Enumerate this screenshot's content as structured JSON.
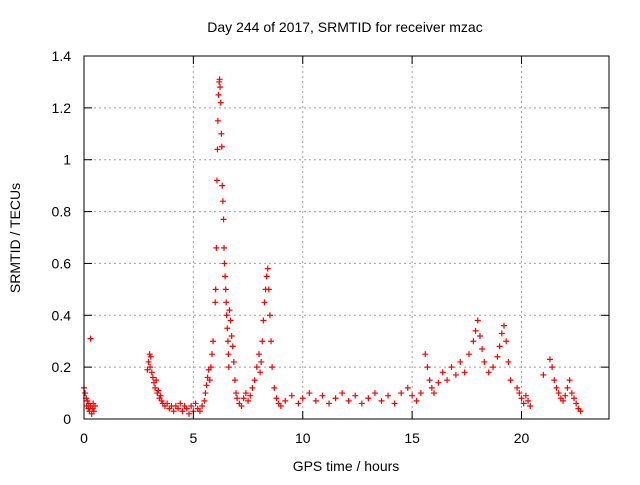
{
  "chart_data": {
    "type": "scatter",
    "title": "Day 244 of 2017, SRMTID for receiver mzac",
    "xlabel": "GPS time / hours",
    "ylabel": "SRMTID / TECUs",
    "xlim": [
      0,
      24
    ],
    "ylim": [
      0,
      1.4
    ],
    "x_ticks": [
      0,
      5,
      10,
      15,
      20
    ],
    "x_tick_labels": [
      "0",
      "5",
      "10",
      "15",
      "20"
    ],
    "y_ticks": [
      0,
      0.2,
      0.4,
      0.6,
      0.8,
      1,
      1.2,
      1.4
    ],
    "y_tick_labels": [
      "0",
      "0.2",
      "0.4",
      "0.6",
      "0.8",
      "1",
      "1.2",
      "1.4"
    ],
    "grid": true,
    "series": [
      {
        "name": "SRMTID",
        "marker": "plus",
        "color": "#ff0000",
        "points": [
          [
            0.0,
            0.12
          ],
          [
            0.05,
            0.1
          ],
          [
            0.1,
            0.08
          ],
          [
            0.12,
            0.05
          ],
          [
            0.15,
            0.07
          ],
          [
            0.2,
            0.04
          ],
          [
            0.22,
            0.06
          ],
          [
            0.25,
            0.03
          ],
          [
            0.3,
            0.05
          ],
          [
            0.35,
            0.02
          ],
          [
            0.4,
            0.04
          ],
          [
            0.42,
            0.06
          ],
          [
            0.45,
            0.03
          ],
          [
            0.5,
            0.05
          ],
          [
            0.3,
            0.31
          ],
          [
            2.9,
            0.19
          ],
          [
            2.95,
            0.22
          ],
          [
            3.0,
            0.25
          ],
          [
            3.02,
            0.2
          ],
          [
            3.05,
            0.24
          ],
          [
            3.1,
            0.18
          ],
          [
            3.15,
            0.16
          ],
          [
            3.2,
            0.14
          ],
          [
            3.25,
            0.12
          ],
          [
            3.3,
            0.15
          ],
          [
            3.35,
            0.1
          ],
          [
            3.4,
            0.11
          ],
          [
            3.45,
            0.08
          ],
          [
            3.5,
            0.09
          ],
          [
            3.55,
            0.07
          ],
          [
            3.6,
            0.06
          ],
          [
            3.7,
            0.05
          ],
          [
            3.8,
            0.06
          ],
          [
            3.9,
            0.04
          ],
          [
            4.0,
            0.05
          ],
          [
            4.1,
            0.03
          ],
          [
            4.2,
            0.05
          ],
          [
            4.3,
            0.04
          ],
          [
            4.4,
            0.06
          ],
          [
            4.5,
            0.03
          ],
          [
            4.6,
            0.05
          ],
          [
            4.7,
            0.04
          ],
          [
            4.8,
            0.02
          ],
          [
            4.9,
            0.05
          ],
          [
            5.0,
            0.03
          ],
          [
            5.1,
            0.06
          ],
          [
            5.2,
            0.04
          ],
          [
            5.3,
            0.03
          ],
          [
            5.4,
            0.05
          ],
          [
            5.5,
            0.07
          ],
          [
            5.55,
            0.1
          ],
          [
            5.6,
            0.13
          ],
          [
            5.65,
            0.16
          ],
          [
            5.7,
            0.19
          ],
          [
            5.75,
            0.15
          ],
          [
            5.8,
            0.2
          ],
          [
            5.85,
            0.25
          ],
          [
            5.9,
            0.3
          ],
          [
            6.0,
            0.45
          ],
          [
            6.02,
            0.5
          ],
          [
            6.05,
            0.66
          ],
          [
            6.08,
            0.92
          ],
          [
            6.1,
            1.04
          ],
          [
            6.12,
            1.15
          ],
          [
            6.15,
            1.25
          ],
          [
            6.18,
            1.3
          ],
          [
            6.2,
            1.31
          ],
          [
            6.22,
            1.28
          ],
          [
            6.25,
            1.22
          ],
          [
            6.28,
            1.1
          ],
          [
            6.3,
            1.05
          ],
          [
            6.32,
            0.9
          ],
          [
            6.35,
            0.84
          ],
          [
            6.38,
            0.77
          ],
          [
            6.4,
            0.66
          ],
          [
            6.42,
            0.6
          ],
          [
            6.45,
            0.55
          ],
          [
            6.48,
            0.5
          ],
          [
            6.5,
            0.45
          ],
          [
            6.52,
            0.4
          ],
          [
            6.55,
            0.35
          ],
          [
            6.58,
            0.3
          ],
          [
            6.6,
            0.25
          ],
          [
            6.62,
            0.2
          ],
          [
            6.65,
            0.42
          ],
          [
            6.7,
            0.38
          ],
          [
            6.75,
            0.32
          ],
          [
            6.8,
            0.28
          ],
          [
            6.85,
            0.22
          ],
          [
            6.9,
            0.15
          ],
          [
            6.95,
            0.1
          ],
          [
            7.0,
            0.08
          ],
          [
            7.1,
            0.06
          ],
          [
            7.2,
            0.05
          ],
          [
            7.3,
            0.08
          ],
          [
            7.4,
            0.1
          ],
          [
            7.5,
            0.07
          ],
          [
            7.6,
            0.09
          ],
          [
            7.7,
            0.12
          ],
          [
            7.8,
            0.15
          ],
          [
            7.9,
            0.2
          ],
          [
            8.0,
            0.25
          ],
          [
            8.05,
            0.18
          ],
          [
            8.1,
            0.22
          ],
          [
            8.15,
            0.3
          ],
          [
            8.2,
            0.38
          ],
          [
            8.25,
            0.45
          ],
          [
            8.3,
            0.5
          ],
          [
            8.35,
            0.55
          ],
          [
            8.4,
            0.58
          ],
          [
            8.45,
            0.5
          ],
          [
            8.5,
            0.4
          ],
          [
            8.55,
            0.3
          ],
          [
            8.6,
            0.2
          ],
          [
            8.7,
            0.12
          ],
          [
            8.8,
            0.08
          ],
          [
            8.9,
            0.06
          ],
          [
            9.0,
            0.05
          ],
          [
            9.2,
            0.07
          ],
          [
            9.5,
            0.09
          ],
          [
            9.8,
            0.06
          ],
          [
            10.0,
            0.08
          ],
          [
            10.3,
            0.1
          ],
          [
            10.6,
            0.07
          ],
          [
            10.9,
            0.09
          ],
          [
            11.2,
            0.06
          ],
          [
            11.5,
            0.08
          ],
          [
            11.8,
            0.1
          ],
          [
            12.1,
            0.07
          ],
          [
            12.4,
            0.09
          ],
          [
            12.7,
            0.06
          ],
          [
            13.0,
            0.08
          ],
          [
            13.3,
            0.1
          ],
          [
            13.6,
            0.07
          ],
          [
            13.9,
            0.09
          ],
          [
            14.2,
            0.06
          ],
          [
            14.5,
            0.1
          ],
          [
            14.8,
            0.12
          ],
          [
            15.0,
            0.09
          ],
          [
            15.2,
            0.07
          ],
          [
            15.4,
            0.1
          ],
          [
            15.6,
            0.25
          ],
          [
            15.7,
            0.2
          ],
          [
            15.8,
            0.15
          ],
          [
            15.9,
            0.12
          ],
          [
            16.0,
            0.1
          ],
          [
            16.2,
            0.14
          ],
          [
            16.4,
            0.18
          ],
          [
            16.6,
            0.15
          ],
          [
            16.8,
            0.2
          ],
          [
            17.0,
            0.17
          ],
          [
            17.2,
            0.22
          ],
          [
            17.4,
            0.18
          ],
          [
            17.6,
            0.25
          ],
          [
            17.8,
            0.3
          ],
          [
            17.9,
            0.34
          ],
          [
            18.0,
            0.38
          ],
          [
            18.1,
            0.32
          ],
          [
            18.2,
            0.27
          ],
          [
            18.3,
            0.22
          ],
          [
            18.5,
            0.18
          ],
          [
            18.7,
            0.2
          ],
          [
            18.9,
            0.24
          ],
          [
            19.0,
            0.28
          ],
          [
            19.1,
            0.33
          ],
          [
            19.2,
            0.36
          ],
          [
            19.3,
            0.3
          ],
          [
            19.4,
            0.22
          ],
          [
            19.5,
            0.15
          ],
          [
            19.8,
            0.12
          ],
          [
            19.9,
            0.1
          ],
          [
            20.0,
            0.08
          ],
          [
            20.1,
            0.06
          ],
          [
            20.2,
            0.09
          ],
          [
            20.3,
            0.07
          ],
          [
            20.4,
            0.05
          ],
          [
            21.0,
            0.17
          ],
          [
            21.3,
            0.23
          ],
          [
            21.4,
            0.2
          ],
          [
            21.5,
            0.15
          ],
          [
            21.6,
            0.12
          ],
          [
            21.7,
            0.1
          ],
          [
            21.8,
            0.08
          ],
          [
            21.9,
            0.07
          ],
          [
            22.0,
            0.09
          ],
          [
            22.1,
            0.12
          ],
          [
            22.2,
            0.15
          ],
          [
            22.3,
            0.1
          ],
          [
            22.4,
            0.08
          ],
          [
            22.5,
            0.06
          ],
          [
            22.6,
            0.04
          ],
          [
            22.7,
            0.03
          ]
        ]
      }
    ]
  }
}
